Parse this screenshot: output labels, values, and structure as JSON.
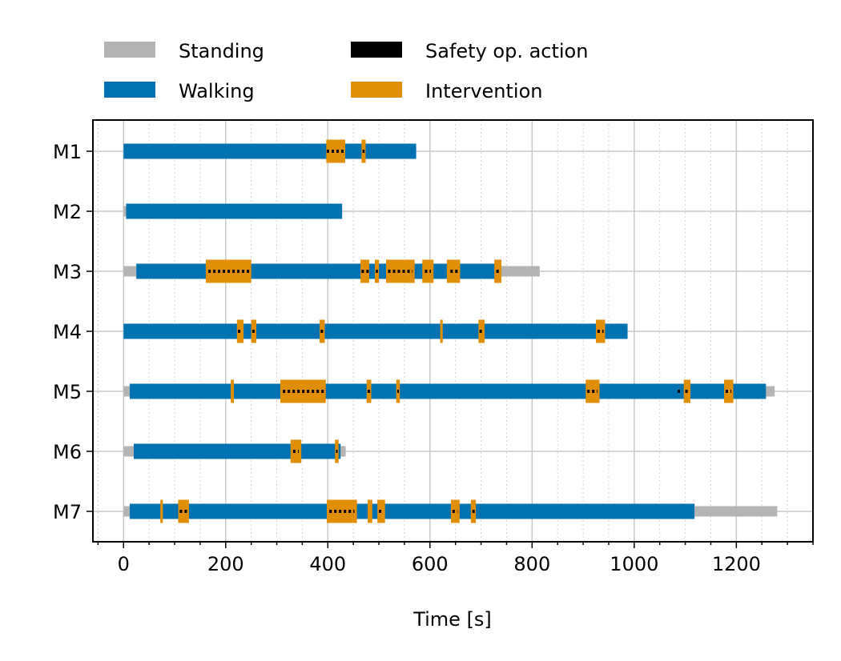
{
  "chart_data": {
    "type": "timeline",
    "xlabel": "Time [s]",
    "xlim": [
      -60,
      1350
    ],
    "x_ticks": [
      0,
      200,
      400,
      600,
      800,
      1000,
      1200
    ],
    "x_minor_step": 50,
    "grid": true,
    "legend_placement": "top-left, outside plot",
    "legend": [
      {
        "key": "standing",
        "label": "Standing",
        "color": "#b4b4b4"
      },
      {
        "key": "walking",
        "label": "Walking",
        "color": "#0072b2"
      },
      {
        "key": "safety",
        "label": "Safety op. action",
        "color": "#000000"
      },
      {
        "key": "intervention",
        "label": "Intervention",
        "color": "#e08e06"
      }
    ],
    "rows": [
      {
        "label": "M1",
        "standing": [],
        "walking": [
          [
            0,
            573
          ]
        ],
        "intervention": [
          [
            397,
            434
          ],
          [
            466,
            474
          ]
        ],
        "safety": [
          [
            398,
            432
          ],
          [
            468,
            472
          ]
        ]
      },
      {
        "label": "M2",
        "standing": [
          [
            0,
            5
          ]
        ],
        "walking": [
          [
            5,
            428
          ]
        ],
        "intervention": [],
        "safety": []
      },
      {
        "label": "M3",
        "standing": [
          [
            0,
            25
          ],
          [
            735,
            815
          ]
        ],
        "walking": [
          [
            25,
            735
          ]
        ],
        "intervention": [
          [
            161,
            250
          ],
          [
            464,
            481
          ],
          [
            492,
            500
          ],
          [
            514,
            570
          ],
          [
            585,
            607
          ],
          [
            633,
            659
          ],
          [
            726,
            740
          ]
        ],
        "safety": [
          [
            166,
            246
          ],
          [
            466,
            480
          ],
          [
            494,
            498
          ],
          [
            518,
            566
          ],
          [
            590,
            602
          ],
          [
            640,
            655
          ],
          [
            730,
            737
          ]
        ]
      },
      {
        "label": "M4",
        "standing": [],
        "walking": [
          [
            0,
            987
          ]
        ],
        "intervention": [
          [
            222,
            235
          ],
          [
            250,
            260
          ],
          [
            384,
            394
          ],
          [
            620,
            625
          ],
          [
            695,
            707
          ],
          [
            925,
            943
          ]
        ],
        "safety": [
          [
            224,
            233
          ],
          [
            252,
            258
          ],
          [
            386,
            392
          ],
          [
            697,
            705
          ],
          [
            928,
            940
          ]
        ]
      },
      {
        "label": "M5",
        "standing": [
          [
            0,
            12
          ],
          [
            1258,
            1275
          ]
        ],
        "walking": [
          [
            12,
            1258
          ]
        ],
        "intervention": [
          [
            210,
            216
          ],
          [
            307,
            396
          ],
          [
            476,
            485
          ],
          [
            534,
            541
          ],
          [
            905,
            932
          ],
          [
            1097,
            1110
          ],
          [
            1176,
            1194
          ]
        ],
        "safety": [
          [
            312,
            392
          ],
          [
            478,
            483
          ],
          [
            536,
            539
          ],
          [
            908,
            928
          ],
          [
            1085,
            1090
          ],
          [
            1100,
            1107
          ],
          [
            1179,
            1190
          ]
        ]
      },
      {
        "label": "M6",
        "standing": [
          [
            0,
            20
          ],
          [
            425,
            435
          ]
        ],
        "walking": [
          [
            20,
            425
          ]
        ],
        "intervention": [
          [
            327,
            348
          ],
          [
            414,
            421
          ]
        ],
        "safety": [
          [
            332,
            343
          ],
          [
            416,
            419
          ]
        ]
      },
      {
        "label": "M7",
        "standing": [
          [
            0,
            12
          ],
          [
            1118,
            1280
          ]
        ],
        "walking": [
          [
            12,
            1118
          ]
        ],
        "intervention": [
          [
            72,
            77
          ],
          [
            107,
            128
          ],
          [
            398,
            457
          ],
          [
            478,
            487
          ],
          [
            497,
            512
          ],
          [
            641,
            658
          ],
          [
            680,
            690
          ]
        ],
        "safety": [
          [
            110,
            125
          ],
          [
            403,
            452
          ],
          [
            500,
            508
          ],
          [
            644,
            654
          ],
          [
            683,
            688
          ]
        ]
      }
    ]
  }
}
